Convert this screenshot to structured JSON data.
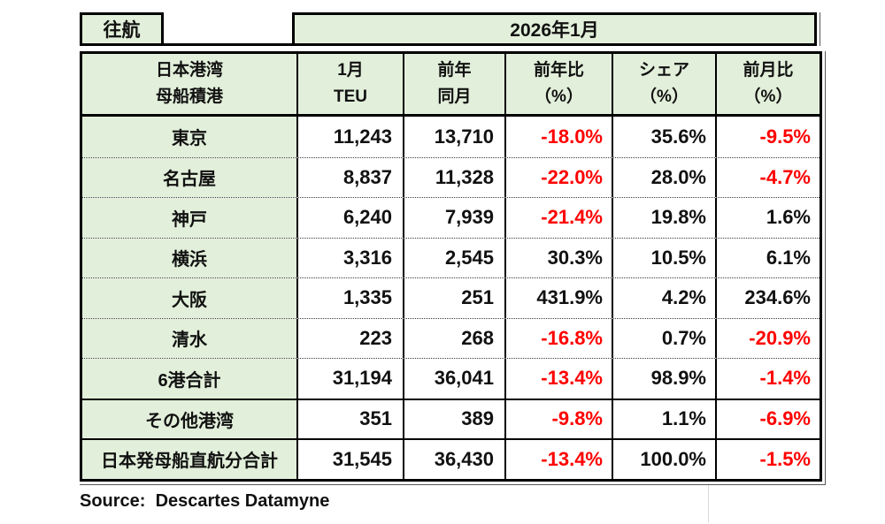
{
  "colors": {
    "green": "#e2efda",
    "red": "#ff0000",
    "border": "#000000"
  },
  "banner": {
    "direction": "往航",
    "period": "2026年1月"
  },
  "header": {
    "port_line1": "日本港湾",
    "port_line2": "母船積港",
    "teu_line1": "1月",
    "teu_line2": "TEU",
    "prev_line1": "前年",
    "prev_line2": "同月",
    "yoy_line1": "前年比",
    "yoy_line2": "（%）",
    "share_line1": "シェア",
    "share_line2": "（%）",
    "mom_line1": "前月比",
    "mom_line2": "（%）"
  },
  "rows": [
    {
      "port": "東京",
      "teu": "11,243",
      "prev": "13,710",
      "yoy": "-18.0%",
      "share": "35.6%",
      "mom": "-9.5%"
    },
    {
      "port": "名古屋",
      "teu": "8,837",
      "prev": "11,328",
      "yoy": "-22.0%",
      "share": "28.0%",
      "mom": "-4.7%"
    },
    {
      "port": "神戸",
      "teu": "6,240",
      "prev": "7,939",
      "yoy": "-21.4%",
      "share": "19.8%",
      "mom": "1.6%"
    },
    {
      "port": "横浜",
      "teu": "3,316",
      "prev": "2,545",
      "yoy": "30.3%",
      "share": "10.5%",
      "mom": "6.1%"
    },
    {
      "port": "大阪",
      "teu": "1,335",
      "prev": "251",
      "yoy": "431.9%",
      "share": "4.2%",
      "mom": "234.6%"
    },
    {
      "port": "清水",
      "teu": "223",
      "prev": "268",
      "yoy": "-16.8%",
      "share": "0.7%",
      "mom": "-20.9%"
    },
    {
      "port": "6港合計",
      "teu": "31,194",
      "prev": "36,041",
      "yoy": "-13.4%",
      "share": "98.9%",
      "mom": "-1.4%"
    },
    {
      "port": "その他港湾",
      "teu": "351",
      "prev": "389",
      "yoy": "-9.8%",
      "share": "1.1%",
      "mom": "-6.9%"
    },
    {
      "port": "日本発母船直航分合計",
      "teu": "31,545",
      "prev": "36,430",
      "yoy": "-13.4%",
      "share": "100.0%",
      "mom": "-1.5%"
    }
  ],
  "source": "Source:  Descartes Datamyne"
}
